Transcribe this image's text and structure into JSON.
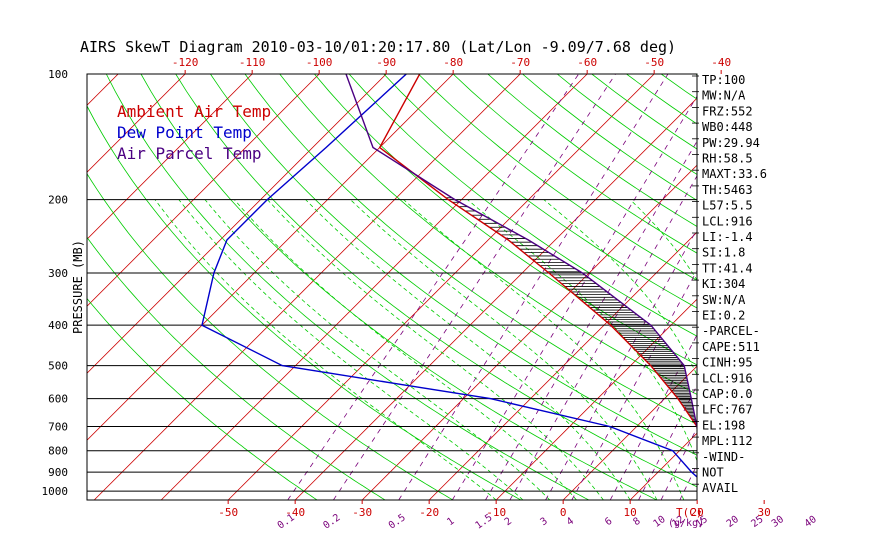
{
  "chart_data": {
    "type": "line",
    "title": "AIRS SkewT Diagram 2010-03-10/01:20:17.80 (Lat/Lon -9.09/7.68 deg)",
    "ylabel": "PRESSURE (MB)",
    "pressure_ticks": [
      "100",
      "200",
      "300",
      "400",
      "500",
      "600",
      "700",
      "800",
      "900",
      "1000"
    ],
    "top_temp_ticks": [
      "-120",
      "-110",
      "-100",
      "-90",
      "-80",
      "-70",
      "-60",
      "-50",
      "-40"
    ],
    "bottom_temp_ticks": [
      "-50",
      "-40",
      "-30",
      "-20",
      "-10",
      "0",
      "10",
      "20",
      "30"
    ],
    "bottom_unit_label": "T(C)",
    "mixing_ratio_labels": [
      "0.1",
      "0.2",
      "0.5",
      "1",
      "1.5",
      "2",
      "3",
      "4",
      "6",
      "8",
      "10",
      "12",
      "15",
      "20",
      "25",
      "30",
      "40"
    ],
    "mixing_ratio_unit": "(g/kg)",
    "legend": [
      {
        "label": "Ambient Air Temp",
        "color": "#cc0000"
      },
      {
        "label": "Dew Point Temp",
        "color": "#0000cc"
      },
      {
        "label": "Air Parcel Temp",
        "color": "#4b0082"
      }
    ],
    "series": [
      {
        "name": "Ambient Air Temp",
        "color": "#cc0000",
        "points": [
          [
            100,
            -85
          ],
          [
            150,
            -80
          ],
          [
            200,
            -62
          ],
          [
            250,
            -47
          ],
          [
            300,
            -36
          ],
          [
            400,
            -19
          ],
          [
            500,
            -7
          ],
          [
            600,
            2
          ],
          [
            700,
            9
          ],
          [
            800,
            15
          ],
          [
            900,
            21
          ],
          [
            1000,
            28
          ]
        ]
      },
      {
        "name": "Dew Point Temp",
        "color": "#0000cc",
        "points": [
          [
            100,
            -87
          ],
          [
            150,
            -88
          ],
          [
            200,
            -89
          ],
          [
            250,
            -89
          ],
          [
            300,
            -86
          ],
          [
            400,
            -80
          ],
          [
            500,
            -62
          ],
          [
            600,
            -26
          ],
          [
            700,
            -4
          ],
          [
            800,
            9
          ],
          [
            900,
            15
          ],
          [
            1000,
            21
          ]
        ]
      },
      {
        "name": "Air Parcel Temp",
        "color": "#4b0082",
        "points": [
          [
            100,
            -96
          ],
          [
            150,
            -81
          ],
          [
            200,
            -61
          ],
          [
            250,
            -44
          ],
          [
            300,
            -31
          ],
          [
            400,
            -13
          ],
          [
            500,
            -2
          ],
          [
            600,
            4
          ],
          [
            700,
            9
          ],
          [
            800,
            13
          ],
          [
            900,
            16
          ],
          [
            1000,
            28
          ]
        ]
      }
    ],
    "indices": [
      "TP:100",
      "MW:N/A",
      "FRZ:552",
      "WB0:448",
      "PW:29.94",
      "RH:58.5",
      "MAXT:33.6",
      "TH:5463",
      "L57:5.5",
      "LCL:916",
      "LI:-1.4",
      "SI:1.8",
      "TT:41.4",
      "KI:304",
      "SW:N/A",
      "EI:0.2",
      "-PARCEL-",
      "CAPE:511",
      "CINH:95",
      "LCL:916",
      "CAP:0.0",
      "LFC:767",
      "EL:198",
      "MPL:112",
      "-WIND-",
      "NOT",
      "AVAIL"
    ],
    "colors": {
      "isotherm": "#cc0000",
      "dry_adiabat": "#00cc00",
      "moist_adiabat": "#00cc00",
      "mixing_ratio": "#7a007a",
      "isobar": "#000000",
      "cape_hatch": "#000000"
    }
  }
}
